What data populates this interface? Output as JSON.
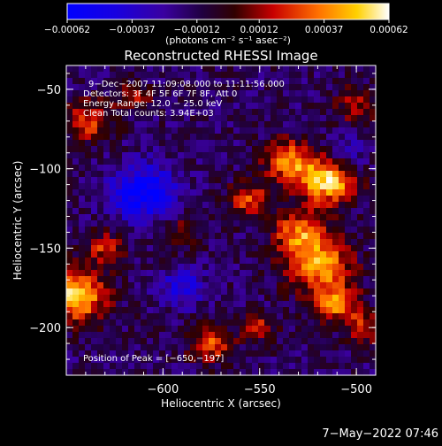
{
  "chart_data": {
    "type": "heatmap",
    "title": "Reconstructed RHESSI Image",
    "xlabel": "Heliocentric X (arcsec)",
    "ylabel": "Heliocentric Y (arcsec)",
    "xlim": [
      -650,
      -490
    ],
    "ylim": [
      -230,
      -35
    ],
    "x_ticks": [
      -600,
      -550,
      -500
    ],
    "x_tick_labels": [
      "−600",
      "−550",
      "−500"
    ],
    "y_ticks": [
      -50,
      -100,
      -150,
      -200
    ],
    "y_tick_labels": [
      "−50",
      "−100",
      "−150",
      "−200"
    ],
    "colorbar": {
      "range": [
        -0.00062,
        0.00062
      ],
      "ticks": [
        -0.00062,
        -0.00037,
        -0.00012,
        0.00012,
        0.00037,
        0.00062
      ],
      "tick_labels": [
        "−0.00062",
        "−0.00037",
        "−0.00012",
        "0.00012",
        "0.00037",
        "0.00062"
      ],
      "units_label": "(photons cm⁻² s⁻¹ asec⁻²)"
    },
    "info_lines": [
      "9−Dec−2007 11:09:08.000 to 11:11:56.000",
      "Detectors: 3F 4F 5F 6F 7F 8F, Att 0",
      "Energy Range: 12.0 − 25.0 keV",
      "Clean    Total counts: 3.94E+03"
    ],
    "peak_label": "Position of Peak = [−650,−197]",
    "sources": [
      {
        "x": -515,
        "y": -108,
        "sigma": 10,
        "amp": 1.0
      },
      {
        "x": -535,
        "y": -95,
        "sigma": 9,
        "amp": 0.75
      },
      {
        "x": -555,
        "y": -120,
        "sigma": 8,
        "amp": 0.55
      },
      {
        "x": -520,
        "y": -160,
        "sigma": 12,
        "amp": 0.85
      },
      {
        "x": -510,
        "y": -185,
        "sigma": 8,
        "amp": 0.7
      },
      {
        "x": -530,
        "y": -140,
        "sigma": 9,
        "amp": 0.65
      },
      {
        "x": -645,
        "y": -180,
        "sigma": 11,
        "amp": 0.95
      },
      {
        "x": -630,
        "y": -150,
        "sigma": 7,
        "amp": 0.5
      },
      {
        "x": -638,
        "y": -70,
        "sigma": 9,
        "amp": 0.55
      },
      {
        "x": -615,
        "y": -55,
        "sigma": 6,
        "amp": 0.45
      },
      {
        "x": -500,
        "y": -60,
        "sigma": 8,
        "amp": 0.4
      },
      {
        "x": -575,
        "y": -210,
        "sigma": 8,
        "amp": 0.6
      },
      {
        "x": -550,
        "y": -200,
        "sigma": 6,
        "amp": 0.45
      },
      {
        "x": -590,
        "y": -140,
        "sigma": 8,
        "amp": 0.3
      },
      {
        "x": -495,
        "y": -200,
        "sigma": 7,
        "amp": 0.5
      },
      {
        "x": -610,
        "y": -115,
        "sigma": 12,
        "amp": -0.7
      },
      {
        "x": -590,
        "y": -175,
        "sigma": 8,
        "amp": -0.45
      },
      {
        "x": -505,
        "y": -90,
        "sigma": 7,
        "amp": -0.35
      }
    ]
  },
  "footer": {
    "date_label": "7−May−2022 07:46"
  }
}
